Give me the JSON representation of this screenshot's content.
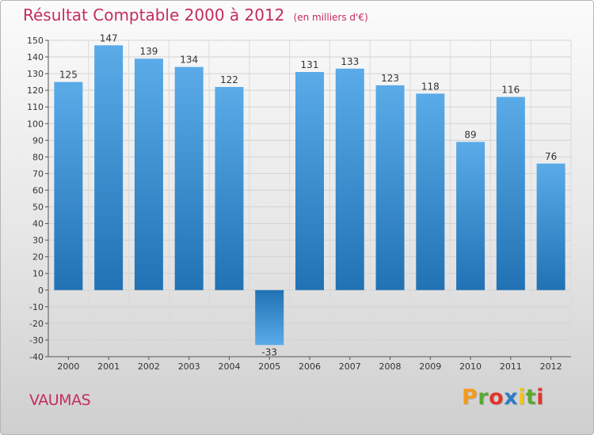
{
  "chart_data": {
    "type": "bar",
    "title": "Résultat Comptable 2000 à 2012",
    "unit_note": "(en milliers d'€)",
    "categories": [
      "2000",
      "2001",
      "2002",
      "2003",
      "2004",
      "2005",
      "2006",
      "2007",
      "2008",
      "2009",
      "2010",
      "2011",
      "2012"
    ],
    "values": [
      125,
      147,
      139,
      134,
      122,
      -33,
      131,
      133,
      123,
      118,
      89,
      116,
      76
    ],
    "ylim": [
      -40,
      150
    ],
    "yticks": [
      150,
      140,
      130,
      120,
      110,
      100,
      90,
      80,
      70,
      60,
      50,
      40,
      30,
      20,
      10,
      0,
      -10,
      -20,
      -30,
      -40
    ],
    "xlabel": "",
    "ylabel": "",
    "grid": true,
    "bar_color": "#3a8fd8"
  },
  "commune": "VAUMAS",
  "brand": {
    "letters": [
      "P",
      "r",
      "o",
      "x",
      "i",
      "t",
      "i"
    ],
    "text": "Proxiti"
  }
}
